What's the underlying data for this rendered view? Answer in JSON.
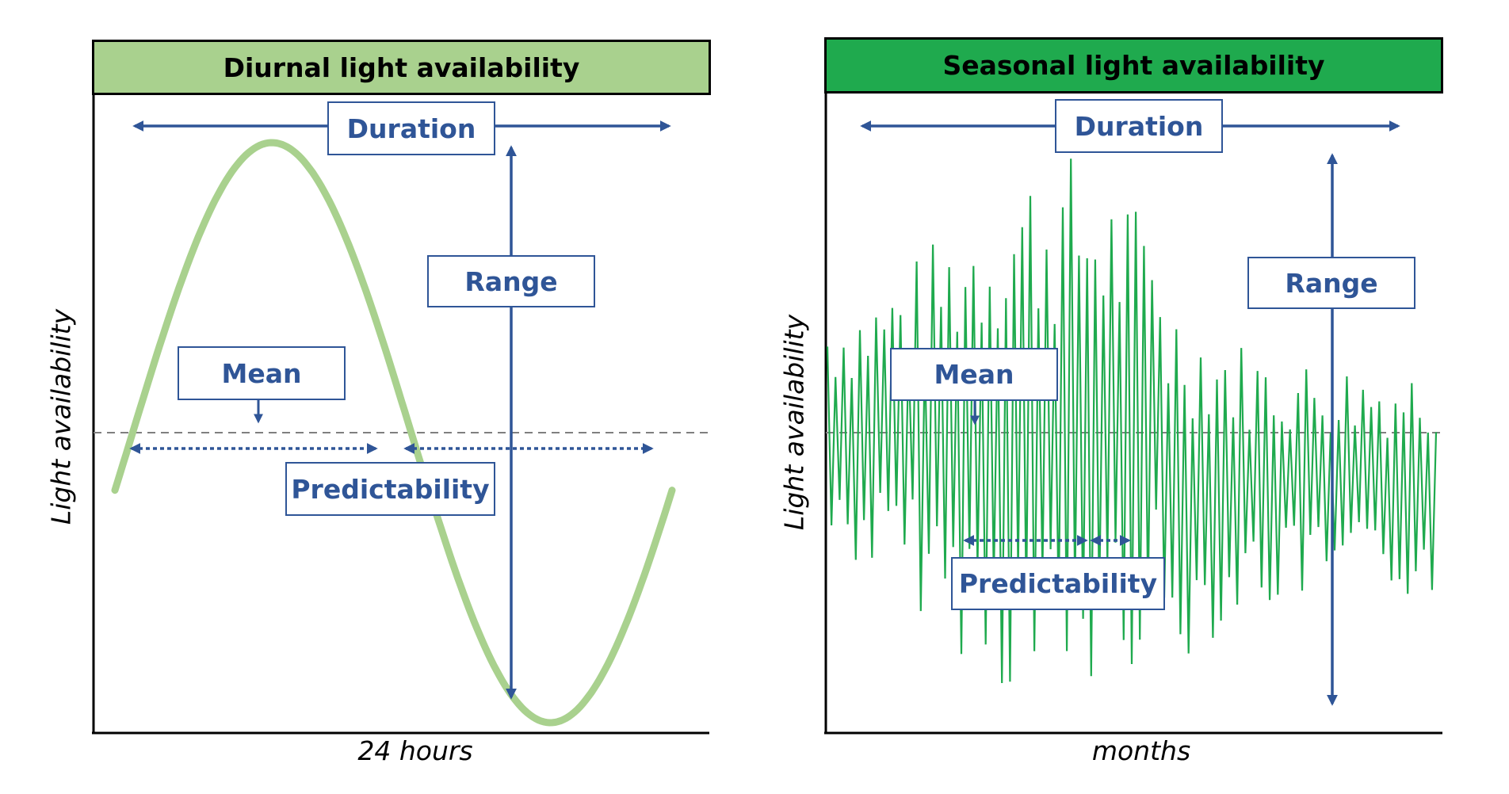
{
  "panels": [
    {
      "id": "diurnal",
      "title": "Diurnal light availability",
      "header_color": "#a9d18e",
      "curve_color": "#a9d18e",
      "x_label": "24 hours",
      "y_label": "Light availability",
      "labels": {
        "duration": "Duration",
        "range": "Range",
        "mean": "Mean",
        "predictability": "Predictability"
      }
    },
    {
      "id": "seasonal",
      "title": "Seasonal light availability",
      "header_color": "#1faa4e",
      "curve_color": "#1faa4e",
      "x_label": "months",
      "y_label": "Light availability",
      "labels": {
        "duration": "Duration",
        "range": "Range",
        "mean": "Mean",
        "predictability": "Predictability"
      }
    }
  ],
  "colors": {
    "arrow": "#2f5597",
    "mean_line": "#7f7f7f",
    "axis": "#000000"
  }
}
